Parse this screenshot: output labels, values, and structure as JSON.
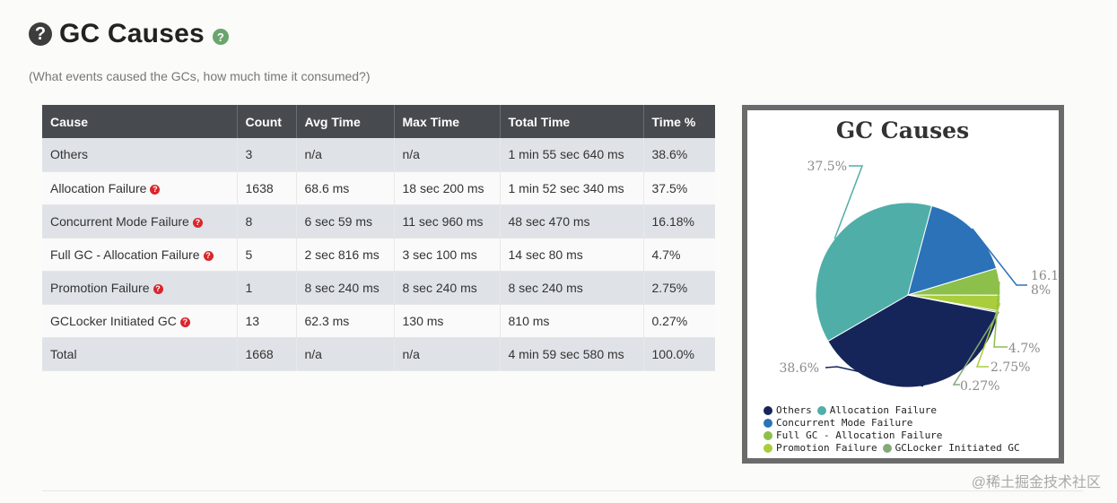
{
  "header": {
    "help_icon_glyph": "?",
    "title": "GC Causes",
    "info_icon_glyph": "?",
    "subtitle": "(What events caused the GCs, how much time it consumed?)"
  },
  "table": {
    "columns": [
      "Cause",
      "Count",
      "Avg Time",
      "Max Time",
      "Total Time",
      "Time %"
    ],
    "rows": [
      {
        "cause": "Others",
        "has_help": false,
        "count": "3",
        "avg": "n/a",
        "max": "n/a",
        "total": "1 min 55 sec 640 ms",
        "pct": "38.6%"
      },
      {
        "cause": "Allocation Failure",
        "has_help": true,
        "count": "1638",
        "avg": "68.6 ms",
        "max": "18 sec 200 ms",
        "total": "1 min 52 sec 340 ms",
        "pct": "37.5%"
      },
      {
        "cause": "Concurrent Mode Failure",
        "has_help": true,
        "count": "8",
        "avg": "6 sec 59 ms",
        "max": "11 sec 960 ms",
        "total": "48 sec 470 ms",
        "pct": "16.18%"
      },
      {
        "cause": "Full GC - Allocation Failure",
        "has_help": true,
        "count": "5",
        "avg": "2 sec 816 ms",
        "max": "3 sec 100 ms",
        "total": "14 sec 80 ms",
        "pct": "4.7%"
      },
      {
        "cause": "Promotion Failure",
        "has_help": true,
        "count": "1",
        "avg": "8 sec 240 ms",
        "max": "8 sec 240 ms",
        "total": "8 sec 240 ms",
        "pct": "2.75%"
      },
      {
        "cause": "GCLocker Initiated GC",
        "has_help": true,
        "count": "13",
        "avg": "62.3 ms",
        "max": "130 ms",
        "total": "810 ms",
        "pct": "0.27%"
      },
      {
        "cause": "Total",
        "has_help": false,
        "count": "1668",
        "avg": "n/a",
        "max": "n/a",
        "total": "4 min 59 sec 580 ms",
        "pct": "100.0%"
      }
    ],
    "help_icon": "help-circle-icon",
    "help_glyph": "?"
  },
  "chart_data": {
    "type": "pie",
    "title": "GC Causes",
    "slices": [
      {
        "name": "Others",
        "value": 38.6,
        "label": "38.6%",
        "color": "#15255a"
      },
      {
        "name": "Allocation Failure",
        "value": 37.5,
        "label": "37.5%",
        "color": "#50aea8"
      },
      {
        "name": "Concurrent Mode Failure",
        "value": 16.18,
        "label": "16.18%",
        "color": "#2b72b8"
      },
      {
        "name": "Full GC - Allocation Failure",
        "value": 4.7,
        "label": "4.7%",
        "color": "#8cc04a"
      },
      {
        "name": "Promotion Failure",
        "value": 2.75,
        "label": "2.75%",
        "color": "#a9cd3c"
      },
      {
        "name": "GCLocker Initiated GC",
        "value": 0.27,
        "label": "0.27%",
        "color": "#86a97a"
      }
    ],
    "legend_placement": "bottom"
  },
  "watermark": "@稀土掘金技术社区"
}
